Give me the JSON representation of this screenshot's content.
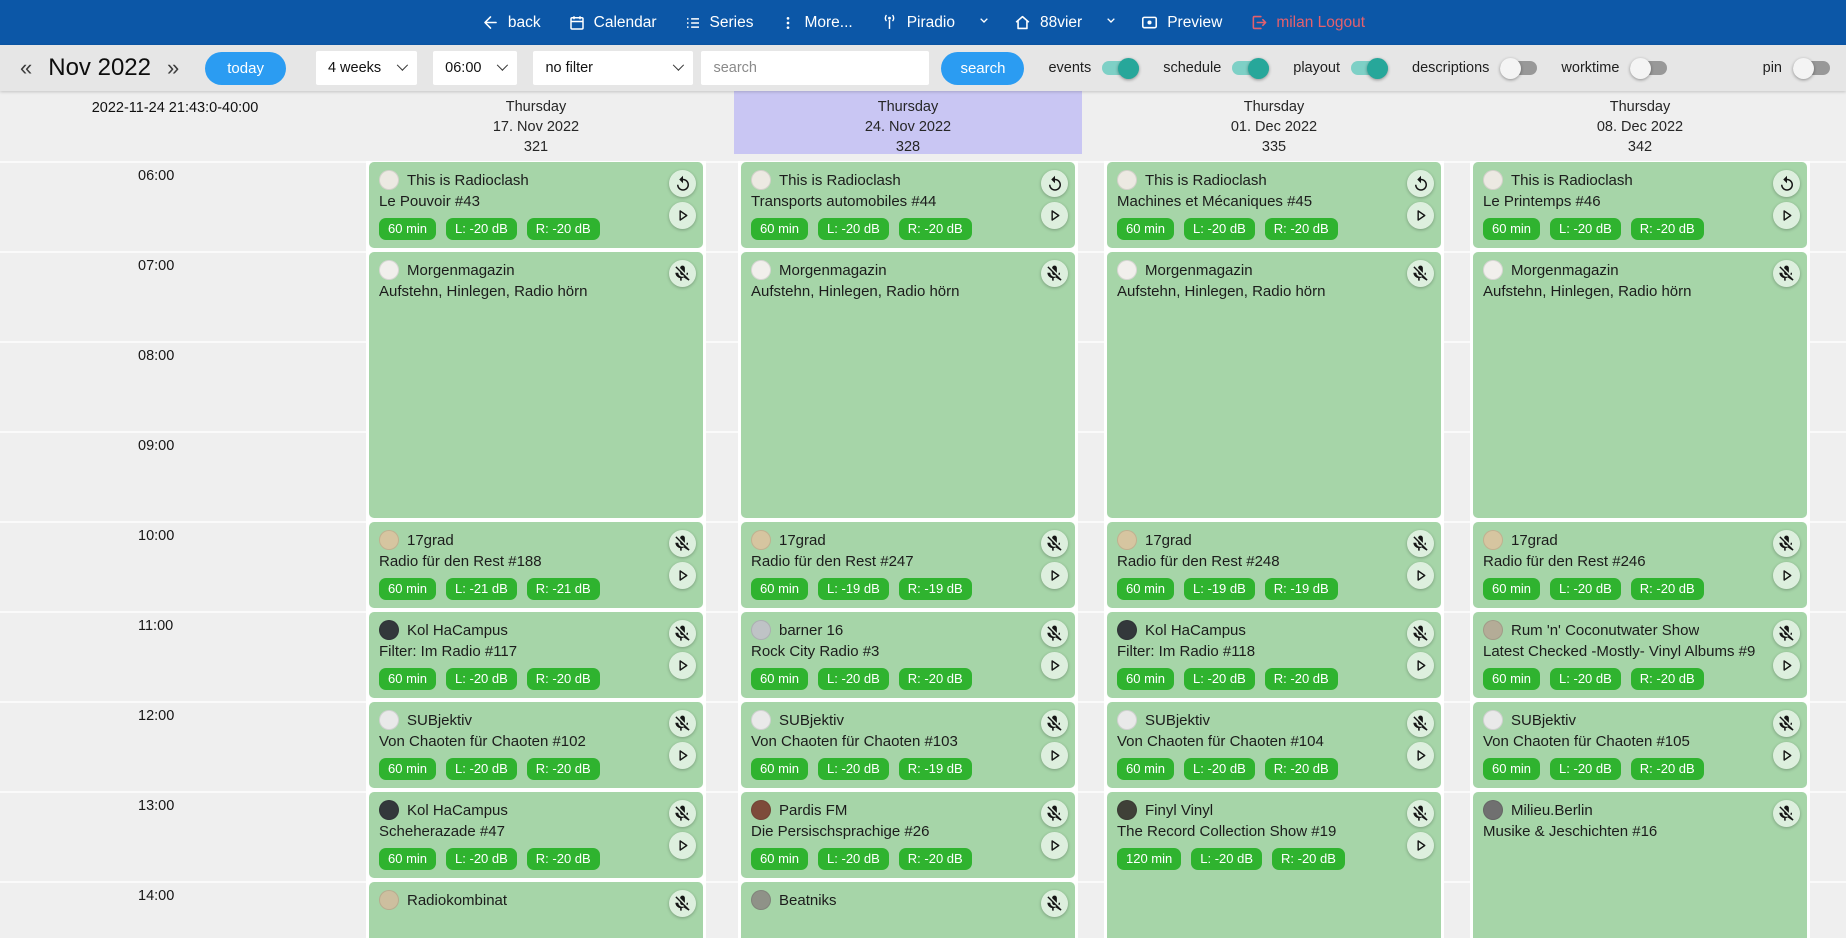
{
  "navbar": {
    "back": "back",
    "calendar": "Calendar",
    "series": "Series",
    "more": "More...",
    "station": "Piradio",
    "channel": "88vier",
    "preview": "Preview",
    "logout": "milan Logout"
  },
  "toolbar": {
    "prev": "«",
    "month": "Nov 2022",
    "next": "»",
    "today": "today",
    "range_select": "4 weeks",
    "time_select": "06:00",
    "filter_select": "no filter",
    "search_placeholder": "search",
    "search_button": "search",
    "toggles": [
      {
        "label": "events",
        "on": true
      },
      {
        "label": "schedule",
        "on": true
      },
      {
        "label": "playout",
        "on": true
      },
      {
        "label": "descriptions",
        "on": false
      },
      {
        "label": "worktime",
        "on": false
      }
    ],
    "pin": {
      "label": "pin",
      "on": false
    }
  },
  "colors": {
    "navbar_blue": "#0c57a7",
    "accent_blue": "#2b9cf2",
    "toggle_on_teal": "#27a79a",
    "event_green": "#a6d5a8",
    "badge_green": "#2fb32f",
    "today_column_highlight": "#c9c6f3",
    "logout_red": "#e4606d"
  },
  "scheduler": {
    "timestamp": "2022-11-24 21:43:0-40:00",
    "hours": [
      "06:00",
      "07:00",
      "08:00",
      "09:00",
      "10:00",
      "11:00",
      "12:00",
      "13:00",
      "14:00"
    ],
    "columns": [
      {
        "weekday": "Thursday",
        "date": "17. Nov 2022",
        "number": "321",
        "highlight": false,
        "events": [
          {
            "show": "This is Radioclash",
            "episode": "Le Pouvoir #43",
            "start": "06:00",
            "duration_min": 60,
            "badges": [
              "60 min",
              "L: -20 dB",
              "R: -20 dB"
            ],
            "icons": [
              "restart",
              "play"
            ],
            "avatar_color": "#ece9e2"
          },
          {
            "show": "Morgenmagazin",
            "episode": "Aufstehn, Hinlegen, Radio hörn",
            "start": "07:00",
            "duration_min": 180,
            "badges": [],
            "icons": [
              "mic-off"
            ],
            "avatar_color": "#f1efec"
          },
          {
            "show": "17grad",
            "episode": "Radio für den Rest #188",
            "start": "10:00",
            "duration_min": 60,
            "badges": [
              "60 min",
              "L: -21 dB",
              "R: -21 dB"
            ],
            "icons": [
              "mic-off",
              "play"
            ],
            "avatar_color": "#d6c5a0"
          },
          {
            "show": "Kol HaCampus",
            "episode": "Filter: Im Radio #117",
            "start": "11:00",
            "duration_min": 60,
            "badges": [
              "60 min",
              "L: -20 dB",
              "R: -20 dB"
            ],
            "icons": [
              "mic-off",
              "play"
            ],
            "avatar_color": "#33383b"
          },
          {
            "show": "SUBjektiv",
            "episode": "Von Chaoten für Chaoten #102",
            "start": "12:00",
            "duration_min": 60,
            "badges": [
              "60 min",
              "L: -20 dB",
              "R: -20 dB"
            ],
            "icons": [
              "mic-off",
              "play"
            ],
            "avatar_color": "#e9e9e9"
          },
          {
            "show": "Kol HaCampus",
            "episode": "Scheherazade #47",
            "start": "13:00",
            "duration_min": 60,
            "badges": [
              "60 min",
              "L: -20 dB",
              "R: -20 dB"
            ],
            "icons": [
              "mic-off",
              "play"
            ],
            "avatar_color": "#33383b"
          },
          {
            "show": "Radiokombinat",
            "episode": "",
            "start": "14:00",
            "duration_min": 60,
            "badges": [],
            "icons": [
              "mic-off"
            ],
            "avatar_color": "#cdbf9f"
          }
        ]
      },
      {
        "weekday": "Thursday",
        "date": "24. Nov 2022",
        "number": "328",
        "highlight": true,
        "events": [
          {
            "show": "This is Radioclash",
            "episode": "Transports automobiles #44",
            "start": "06:00",
            "duration_min": 60,
            "badges": [
              "60 min",
              "L: -20 dB",
              "R: -20 dB"
            ],
            "icons": [
              "restart",
              "play"
            ],
            "avatar_color": "#ece9e2"
          },
          {
            "show": "Morgenmagazin",
            "episode": "Aufstehn, Hinlegen, Radio hörn",
            "start": "07:00",
            "duration_min": 180,
            "badges": [],
            "icons": [
              "mic-off"
            ],
            "avatar_color": "#f1efec"
          },
          {
            "show": "17grad",
            "episode": "Radio für den Rest #247",
            "start": "10:00",
            "duration_min": 60,
            "badges": [
              "60 min",
              "L: -19 dB",
              "R: -19 dB"
            ],
            "icons": [
              "mic-off",
              "play"
            ],
            "avatar_color": "#d6c5a0"
          },
          {
            "show": "barner 16",
            "episode": "Rock City Radio #3",
            "start": "11:00",
            "duration_min": 60,
            "badges": [
              "60 min",
              "L: -20 dB",
              "R: -20 dB"
            ],
            "icons": [
              "mic-off",
              "play"
            ],
            "avatar_color": "#bfc3c6"
          },
          {
            "show": "SUBjektiv",
            "episode": "Von Chaoten für Chaoten #103",
            "start": "12:00",
            "duration_min": 60,
            "badges": [
              "60 min",
              "L: -20 dB",
              "R: -19 dB"
            ],
            "icons": [
              "mic-off",
              "play"
            ],
            "avatar_color": "#e9e9e9"
          },
          {
            "show": "Pardis FM",
            "episode": "Die Persischsprachige #26",
            "start": "13:00",
            "duration_min": 60,
            "badges": [
              "60 min",
              "L: -20 dB",
              "R: -20 dB"
            ],
            "icons": [
              "mic-off",
              "play"
            ],
            "avatar_color": "#7d4b3a"
          },
          {
            "show": "Beatniks",
            "episode": "",
            "start": "14:00",
            "duration_min": 60,
            "badges": [],
            "icons": [
              "mic-off"
            ],
            "avatar_color": "#8f9288"
          }
        ]
      },
      {
        "weekday": "Thursday",
        "date": "01. Dec 2022",
        "number": "335",
        "highlight": false,
        "events": [
          {
            "show": "This is Radioclash",
            "episode": "Machines et Mécaniques #45",
            "start": "06:00",
            "duration_min": 60,
            "badges": [
              "60 min",
              "L: -20 dB",
              "R: -20 dB"
            ],
            "icons": [
              "restart",
              "play"
            ],
            "avatar_color": "#ece9e2"
          },
          {
            "show": "Morgenmagazin",
            "episode": "Aufstehn, Hinlegen, Radio hörn",
            "start": "07:00",
            "duration_min": 180,
            "badges": [],
            "icons": [
              "mic-off"
            ],
            "avatar_color": "#f1efec"
          },
          {
            "show": "17grad",
            "episode": "Radio für den Rest #248",
            "start": "10:00",
            "duration_min": 60,
            "badges": [
              "60 min",
              "L: -19 dB",
              "R: -19 dB"
            ],
            "icons": [
              "mic-off",
              "play"
            ],
            "avatar_color": "#d6c5a0"
          },
          {
            "show": "Kol HaCampus",
            "episode": "Filter: Im Radio #118",
            "start": "11:00",
            "duration_min": 60,
            "badges": [
              "60 min",
              "L: -20 dB",
              "R: -20 dB"
            ],
            "icons": [
              "mic-off",
              "play"
            ],
            "avatar_color": "#33383b"
          },
          {
            "show": "SUBjektiv",
            "episode": "Von Chaoten für Chaoten #104",
            "start": "12:00",
            "duration_min": 60,
            "badges": [
              "60 min",
              "L: -20 dB",
              "R: -20 dB"
            ],
            "icons": [
              "mic-off",
              "play"
            ],
            "avatar_color": "#e9e9e9"
          },
          {
            "show": "Finyl Vinyl",
            "episode": "The Record Collection Show #19",
            "start": "13:00",
            "duration_min": 120,
            "badges": [
              "120 min",
              "L: -20 dB",
              "R: -20 dB"
            ],
            "icons": [
              "mic-off",
              "play"
            ],
            "avatar_color": "#3f4038"
          }
        ]
      },
      {
        "weekday": "Thursday",
        "date": "08. Dec 2022",
        "number": "342",
        "highlight": false,
        "events": [
          {
            "show": "This is Radioclash",
            "episode": "Le Printemps #46",
            "start": "06:00",
            "duration_min": 60,
            "badges": [
              "60 min",
              "L: -20 dB",
              "R: -20 dB"
            ],
            "icons": [
              "restart",
              "play"
            ],
            "avatar_color": "#ece9e2"
          },
          {
            "show": "Morgenmagazin",
            "episode": "Aufstehn, Hinlegen, Radio hörn",
            "start": "07:00",
            "duration_min": 180,
            "badges": [],
            "icons": [
              "mic-off"
            ],
            "avatar_color": "#f1efec"
          },
          {
            "show": "17grad",
            "episode": "Radio für den Rest #246",
            "start": "10:00",
            "duration_min": 60,
            "badges": [
              "60 min",
              "L: -20 dB",
              "R: -20 dB"
            ],
            "icons": [
              "mic-off",
              "play"
            ],
            "avatar_color": "#d6c5a0"
          },
          {
            "show": "Rum 'n' Coconutwater Show",
            "episode": "Latest Checked -Mostly- Vinyl Albums #9",
            "start": "11:00",
            "duration_min": 60,
            "badges": [
              "60 min",
              "L: -20 dB",
              "R: -20 dB"
            ],
            "icons": [
              "mic-off",
              "play"
            ],
            "avatar_color": "#b4ac97"
          },
          {
            "show": "SUBjektiv",
            "episode": "Von Chaoten für Chaoten #105",
            "start": "12:00",
            "duration_min": 60,
            "badges": [
              "60 min",
              "L: -20 dB",
              "R: -20 dB"
            ],
            "icons": [
              "mic-off",
              "play"
            ],
            "avatar_color": "#e9e9e9"
          },
          {
            "show": "Milieu.Berlin",
            "episode": "Musike & Jeschichten #16",
            "start": "13:00",
            "duration_min": 120,
            "badges": [],
            "icons": [
              "mic-off"
            ],
            "avatar_color": "#707070"
          }
        ]
      }
    ]
  }
}
